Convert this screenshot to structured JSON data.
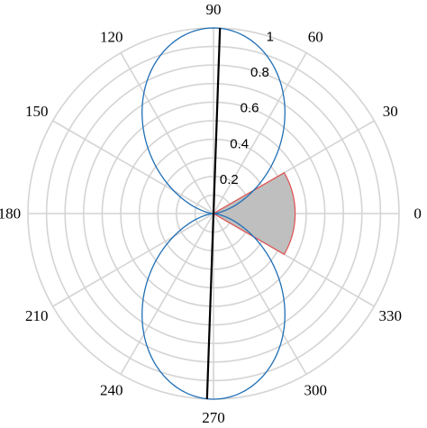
{
  "chart_data": {
    "type": "polar",
    "angle_unit": "degrees",
    "angle_tick_labels": [
      "0",
      "30",
      "60",
      "90",
      "120",
      "150",
      "180",
      "210",
      "240",
      "270",
      "300",
      "330"
    ],
    "angle_ticks": [
      0,
      30,
      60,
      90,
      120,
      150,
      180,
      210,
      240,
      270,
      300,
      330
    ],
    "radial_tick_labels": [
      "0.2",
      "0.4",
      "0.6",
      "0.8",
      "1"
    ],
    "radial_ticks": [
      0.2,
      0.4,
      0.6,
      0.8,
      1.0
    ],
    "rlim": [
      0,
      1
    ],
    "grid": true,
    "grid_color": "#d4d4d4",
    "series": [
      {
        "kind": "curve",
        "formula_note_hidden": true,
        "color": "#1f6fb5",
        "points_deg_r": [
          [
            0,
            0.0
          ],
          [
            10,
            0.0301
          ],
          [
            20,
            0.117
          ],
          [
            30,
            0.25
          ],
          [
            40,
            0.4132
          ],
          [
            50,
            0.5868
          ],
          [
            60,
            0.75
          ],
          [
            70,
            0.883
          ],
          [
            80,
            0.9698
          ],
          [
            90,
            1.0
          ],
          [
            100,
            0.9698
          ],
          [
            110,
            0.883
          ],
          [
            120,
            0.75
          ],
          [
            130,
            0.5868
          ],
          [
            140,
            0.4132
          ],
          [
            150,
            0.25
          ],
          [
            160,
            0.117
          ],
          [
            170,
            0.0301
          ],
          [
            180,
            0.0
          ],
          [
            190,
            0.0301
          ],
          [
            200,
            0.117
          ],
          [
            210,
            0.25
          ],
          [
            220,
            0.4132
          ],
          [
            230,
            0.5868
          ],
          [
            240,
            0.75
          ],
          [
            250,
            0.883
          ],
          [
            260,
            0.9698
          ],
          [
            270,
            1.0
          ],
          [
            280,
            0.9698
          ],
          [
            290,
            0.883
          ],
          [
            300,
            0.75
          ],
          [
            310,
            0.5868
          ],
          [
            320,
            0.4132
          ],
          [
            330,
            0.25
          ],
          [
            340,
            0.117
          ],
          [
            350,
            0.0301
          ]
        ]
      },
      {
        "kind": "sector",
        "theta_range_deg": [
          -30,
          30
        ],
        "r": 0.44,
        "fill": "#bfbfbf",
        "edge": "#e05050"
      },
      {
        "kind": "line",
        "angles_deg": [
          88,
          268
        ],
        "r": 1.0,
        "color": "#000000"
      }
    ]
  }
}
